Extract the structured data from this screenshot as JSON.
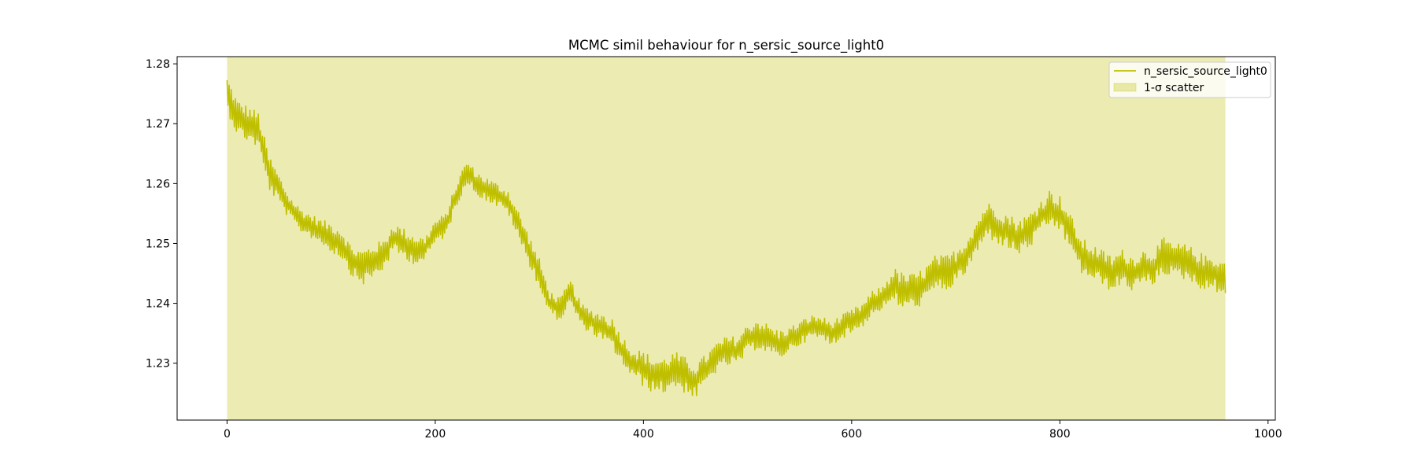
{
  "chart_data": {
    "type": "line",
    "title": "MCMC simil behaviour for n_sersic_source_light0",
    "xlabel": "",
    "ylabel": "",
    "xlim": [
      -47.95,
      1006.95
    ],
    "ylim": [
      1.2205,
      1.2812
    ],
    "xticks": [
      0,
      200,
      400,
      600,
      800,
      1000
    ],
    "yticks": [
      1.23,
      1.24,
      1.25,
      1.26,
      1.27,
      1.28
    ],
    "xtick_labels": [
      "0",
      "200",
      "400",
      "600",
      "800",
      "1000"
    ],
    "ytick_labels": [
      "1.23",
      "1.24",
      "1.25",
      "1.26",
      "1.27",
      "1.28"
    ],
    "n_points": 960,
    "grid": false,
    "legend_position": "top-right",
    "colors": {
      "line": "#bfbf00",
      "band": "#bfbf00"
    },
    "series": [
      {
        "name": "n_sersic_source_light0",
        "kind": "line",
        "anchors_x": [
          0,
          10,
          20,
          30,
          40,
          50,
          60,
          70,
          80,
          90,
          100,
          110,
          120,
          130,
          140,
          150,
          160,
          170,
          180,
          190,
          200,
          210,
          220,
          230,
          240,
          250,
          260,
          270,
          280,
          290,
          300,
          310,
          320,
          330,
          340,
          350,
          360,
          370,
          380,
          390,
          400,
          410,
          420,
          430,
          440,
          450,
          460,
          470,
          480,
          490,
          500,
          510,
          520,
          530,
          540,
          550,
          560,
          570,
          580,
          590,
          600,
          610,
          620,
          630,
          640,
          650,
          660,
          670,
          680,
          690,
          700,
          710,
          720,
          730,
          740,
          750,
          760,
          770,
          780,
          790,
          800,
          810,
          820,
          830,
          840,
          850,
          860,
          870,
          880,
          890,
          900,
          910,
          920,
          930,
          940,
          950,
          959
        ],
        "anchors_y": [
          1.275,
          1.271,
          1.27,
          1.269,
          1.262,
          1.259,
          1.256,
          1.254,
          1.253,
          1.252,
          1.251,
          1.25,
          1.247,
          1.246,
          1.247,
          1.248,
          1.251,
          1.25,
          1.249,
          1.249,
          1.252,
          1.253,
          1.258,
          1.262,
          1.26,
          1.259,
          1.258,
          1.257,
          1.253,
          1.249,
          1.245,
          1.24,
          1.239,
          1.242,
          1.238,
          1.237,
          1.236,
          1.235,
          1.232,
          1.23,
          1.229,
          1.228,
          1.228,
          1.229,
          1.228,
          1.227,
          1.229,
          1.231,
          1.232,
          1.232,
          1.234,
          1.235,
          1.234,
          1.233,
          1.234,
          1.235,
          1.236,
          1.236,
          1.235,
          1.236,
          1.237,
          1.238,
          1.24,
          1.241,
          1.243,
          1.242,
          1.242,
          1.243,
          1.245,
          1.245,
          1.246,
          1.248,
          1.251,
          1.254,
          1.253,
          1.252,
          1.251,
          1.252,
          1.254,
          1.256,
          1.255,
          1.252,
          1.248,
          1.247,
          1.246,
          1.245,
          1.246,
          1.245,
          1.246,
          1.246,
          1.248,
          1.247,
          1.247,
          1.246,
          1.245,
          1.245,
          1.244
        ],
        "noise_amplitude": [
          0.003,
          0.003,
          0.003,
          0.003,
          0.003,
          0.0025,
          0.002,
          0.002,
          0.002,
          0.002,
          0.0025,
          0.0025,
          0.0025,
          0.003,
          0.003,
          0.0025,
          0.0025,
          0.0025,
          0.0025,
          0.002,
          0.002,
          0.002,
          0.002,
          0.002,
          0.002,
          0.002,
          0.002,
          0.002,
          0.0025,
          0.0025,
          0.0025,
          0.002,
          0.002,
          0.002,
          0.002,
          0.002,
          0.0025,
          0.0025,
          0.0025,
          0.0025,
          0.003,
          0.003,
          0.003,
          0.003,
          0.003,
          0.003,
          0.0025,
          0.0025,
          0.0025,
          0.0025,
          0.0025,
          0.0025,
          0.0025,
          0.0025,
          0.002,
          0.002,
          0.002,
          0.002,
          0.002,
          0.002,
          0.002,
          0.002,
          0.002,
          0.002,
          0.003,
          0.003,
          0.003,
          0.003,
          0.003,
          0.003,
          0.003,
          0.003,
          0.003,
          0.003,
          0.003,
          0.003,
          0.003,
          0.003,
          0.003,
          0.003,
          0.003,
          0.003,
          0.003,
          0.003,
          0.003,
          0.003,
          0.003,
          0.003,
          0.003,
          0.003,
          0.003,
          0.003,
          0.003,
          0.003,
          0.003,
          0.003,
          0.003
        ]
      },
      {
        "name": "1-σ scatter",
        "kind": "band",
        "x_range": [
          0,
          959
        ],
        "y_lower": 1.2205,
        "y_upper": 1.2812
      }
    ],
    "legend": [
      "n_sersic_source_light0",
      "1-σ scatter"
    ]
  }
}
